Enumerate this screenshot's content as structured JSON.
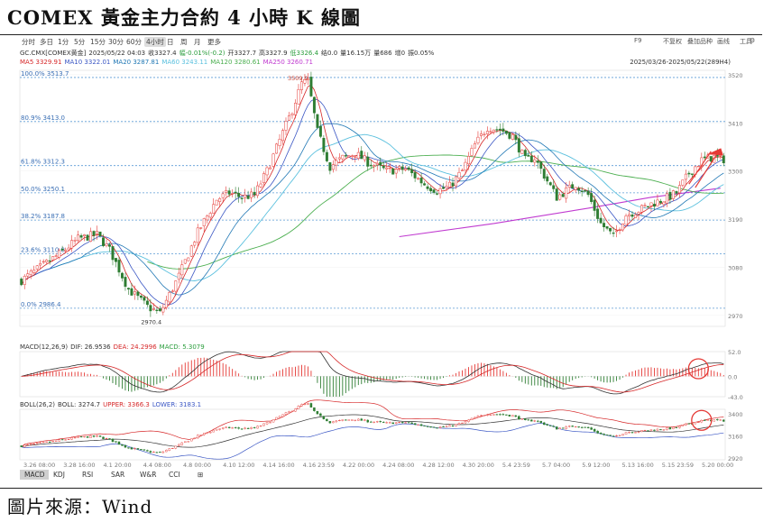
{
  "title": "COMEX 黃金主力合約 4 小時 K 線圖",
  "source": "圖片來源：Wind",
  "toolbar": {
    "periods": [
      "分时",
      "多日",
      "1分",
      "5分",
      "15分",
      "30分",
      "60分",
      "4小时",
      "日",
      "周",
      "月",
      "更多"
    ],
    "active_period": "4小时",
    "right_items": [
      "F9",
      "不复权",
      "叠加品种",
      "画线",
      "工具",
      "⚙"
    ]
  },
  "info": {
    "line1": [
      "GC.CMX[COMEX黄金]",
      "2025/05/22 04:03",
      "收3327.4",
      "幅-0.01%(-0.2)",
      "开3327.7",
      "高3327.9",
      "低3326.4",
      "结0.0",
      "量16.15万",
      "量686",
      "增0",
      "振0.05%"
    ],
    "line1_colors": [
      "#333333",
      "#333333",
      "#333333",
      "#2a9d3c",
      "#333333",
      "#333333",
      "#2a9d3c",
      "#333333",
      "#333333",
      "#333333",
      "#333333",
      "#333333"
    ],
    "date_range": "2025/03/26-2025/05/22(289H4)",
    "ma": [
      {
        "label": "MA5 3329.91",
        "color": "#d62728"
      },
      {
        "label": "MA10 3322.01",
        "color": "#3a56c4"
      },
      {
        "label": "MA20 3287.81",
        "color": "#1f77b4"
      },
      {
        "label": "MA60 3243.11",
        "color": "#5bc0de"
      },
      {
        "label": "MA120 3280.61",
        "color": "#4caf50"
      },
      {
        "label": "MA250 3260.71",
        "color": "#c03ad0"
      }
    ]
  },
  "macd_label": {
    "parts": [
      {
        "text": "MACD(12,26,9)",
        "color": "#333333"
      },
      {
        "text": "DIF: 26.9536",
        "color": "#333333"
      },
      {
        "text": "DEA: 24.2996",
        "color": "#d62728"
      },
      {
        "text": "MACD: 5.3079",
        "color": "#2a9d3c"
      }
    ]
  },
  "boll_label": {
    "parts": [
      {
        "text": "BOLL(26,2)",
        "color": "#333333"
      },
      {
        "text": "BOLL: 3274.7",
        "color": "#333333"
      },
      {
        "text": "UPPER: 3366.3",
        "color": "#d62728"
      },
      {
        "text": "LOWER: 3183.1",
        "color": "#3a56c4"
      }
    ]
  },
  "bottom_tabs": [
    "MACD",
    "KDJ",
    "RSI",
    "SAR",
    "W&R",
    "CCI",
    "⊞"
  ],
  "active_tab": "MACD",
  "chart_data": {
    "type": "candlestick",
    "title": "COMEX 黃金主力合約 4 小時 K 線圖",
    "ylim": [
      2945,
      3530
    ],
    "y_ticks": [
      2970,
      3080,
      3190,
      3300,
      3410,
      3520
    ],
    "x_ticks": [
      "3.26 08:00",
      "3.28 16:00",
      "4.1 20:00",
      "4.4 08:00",
      "4.8 00:00",
      "4.10 12:00",
      "4.14 16:00",
      "4.16 23:59",
      "4.22 00:00",
      "4.24 08:00",
      "4.28 12:00",
      "4.30 20:00",
      "5.4 23:59",
      "5.7 04:00",
      "5.9 12:00",
      "5.13 16:00",
      "5.15 23:59",
      "5.20 00:00"
    ],
    "fib_levels": [
      {
        "label": "100.0%",
        "value": 3513.7
      },
      {
        "label": "80.9%",
        "value": 3413.0
      },
      {
        "label": "61.8%",
        "value": 3312.3
      },
      {
        "label": "50.0%",
        "value": 3250.1
      },
      {
        "label": "38.2%",
        "value": 3187.8
      },
      {
        "label": "23.6%",
        "value": 3110.8
      },
      {
        "label": "0.0%",
        "value": 2986.4
      }
    ],
    "annotations": [
      {
        "text": "3509.9",
        "value": 3509.9
      },
      {
        "text": "2970.4",
        "value": 2970.4
      }
    ],
    "anchors": [
      [
        0,
        3050
      ],
      [
        6,
        3080
      ],
      [
        12,
        3110
      ],
      [
        18,
        3145
      ],
      [
        24,
        3155
      ],
      [
        28,
        3120
      ],
      [
        34,
        3030
      ],
      [
        40,
        2990
      ],
      [
        44,
        2975
      ],
      [
        50,
        3060
      ],
      [
        56,
        3160
      ],
      [
        62,
        3235
      ],
      [
        66,
        3250
      ],
      [
        70,
        3240
      ],
      [
        74,
        3245
      ],
      [
        78,
        3300
      ],
      [
        82,
        3370
      ],
      [
        86,
        3440
      ],
      [
        89,
        3500
      ],
      [
        91,
        3505
      ],
      [
        94,
        3390
      ],
      [
        98,
        3310
      ],
      [
        102,
        3330
      ],
      [
        106,
        3340
      ],
      [
        110,
        3320
      ],
      [
        116,
        3300
      ],
      [
        122,
        3305
      ],
      [
        128,
        3270
      ],
      [
        132,
        3255
      ],
      [
        136,
        3265
      ],
      [
        140,
        3300
      ],
      [
        144,
        3360
      ],
      [
        148,
        3400
      ],
      [
        152,
        3395
      ],
      [
        156,
        3380
      ],
      [
        160,
        3325
      ],
      [
        163,
        3330
      ],
      [
        166,
        3290
      ],
      [
        170,
        3240
      ],
      [
        176,
        3270
      ],
      [
        180,
        3245
      ],
      [
        184,
        3180
      ],
      [
        188,
        3150
      ],
      [
        192,
        3200
      ],
      [
        196,
        3210
      ],
      [
        200,
        3225
      ],
      [
        204,
        3235
      ],
      [
        208,
        3250
      ],
      [
        212,
        3295
      ],
      [
        216,
        3325
      ],
      [
        220,
        3332
      ],
      [
        222,
        3327
      ]
    ],
    "ma_final": {
      "MA5": 3329.91,
      "MA10": 3322.01,
      "MA20": 3287.81,
      "MA60": 3243.11,
      "MA120": 3280.61,
      "MA250": 3260.71
    },
    "macd": {
      "ylim": [
        -43,
        52
      ],
      "ticks": [
        52.0,
        0.0,
        -43.0
      ],
      "DIF": 26.9536,
      "DEA": 24.2996,
      "MACD": 5.3079
    },
    "boll": {
      "ylim": [
        2900,
        3450
      ],
      "ticks": [
        3400,
        3160,
        2920
      ],
      "BOLL": 3274.7,
      "UPPER": 3366.3,
      "LOWER": 3183.1
    }
  }
}
